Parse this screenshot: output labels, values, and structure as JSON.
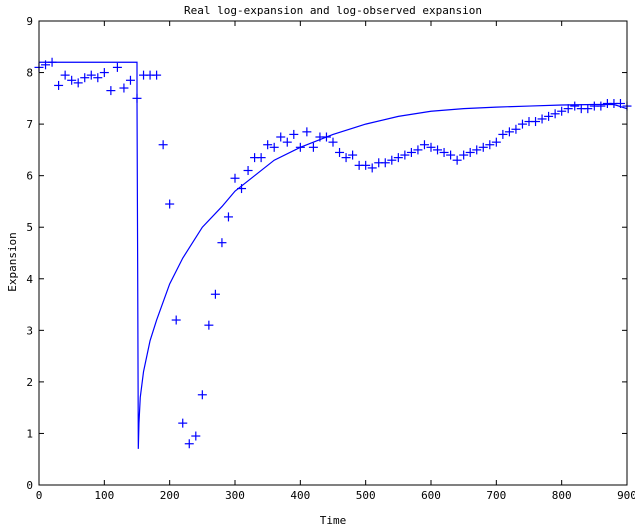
{
  "chart_data": {
    "type": "line",
    "title": "Real log-expansion and log-observed expansion",
    "xlabel": "Time",
    "ylabel": "Expansion",
    "xlim": [
      0,
      900
    ],
    "ylim": [
      0,
      9
    ],
    "xticks": [
      0,
      100,
      200,
      300,
      400,
      500,
      600,
      700,
      800,
      900
    ],
    "yticks": [
      0,
      1,
      2,
      3,
      4,
      5,
      6,
      7,
      8,
      9
    ],
    "grid": false,
    "color": "#0000ff",
    "series": [
      {
        "style": "line",
        "x": [
          0,
          150,
          150,
          151,
          152,
          153,
          155,
          160,
          170,
          180,
          200,
          220,
          250,
          280,
          300,
          330,
          360,
          400,
          450,
          500,
          550,
          600,
          650,
          700,
          750,
          800,
          850,
          880,
          900
        ],
        "y": [
          8.2,
          8.2,
          7.5,
          4.3,
          0.7,
          1.2,
          1.7,
          2.2,
          2.8,
          3.2,
          3.9,
          4.4,
          5.0,
          5.4,
          5.7,
          6.0,
          6.3,
          6.55,
          6.8,
          7.0,
          7.15,
          7.25,
          7.3,
          7.33,
          7.35,
          7.37,
          7.38,
          7.38,
          7.3
        ]
      },
      {
        "style": "marker",
        "marker": "+",
        "x": [
          0,
          10,
          20,
          30,
          40,
          50,
          60,
          70,
          80,
          90,
          100,
          110,
          120,
          130,
          140,
          150,
          160,
          170,
          180,
          190,
          200,
          210,
          220,
          230,
          240,
          250,
          260,
          270,
          280,
          290,
          300,
          310,
          320,
          330,
          340,
          350,
          360,
          370,
          380,
          390,
          400,
          410,
          420,
          430,
          440,
          450,
          460,
          470,
          480,
          490,
          500,
          510,
          520,
          530,
          540,
          550,
          560,
          570,
          580,
          590,
          600,
          610,
          620,
          630,
          640,
          650,
          660,
          670,
          680,
          690,
          700,
          710,
          720,
          730,
          740,
          750,
          760,
          770,
          780,
          790,
          800,
          810,
          820,
          830,
          840,
          850,
          860,
          870,
          880,
          890,
          900
        ],
        "y": [
          8.1,
          8.15,
          8.2,
          7.75,
          7.95,
          7.85,
          7.8,
          7.9,
          7.95,
          7.9,
          8.0,
          7.65,
          8.1,
          7.7,
          7.85,
          7.5,
          7.95,
          7.95,
          7.95,
          6.6,
          5.45,
          3.2,
          1.2,
          0.8,
          0.95,
          1.75,
          3.1,
          3.7,
          4.7,
          5.2,
          5.95,
          5.75,
          6.1,
          6.35,
          6.35,
          6.6,
          6.55,
          6.75,
          6.65,
          6.8,
          6.55,
          6.85,
          6.55,
          6.75,
          6.75,
          6.65,
          6.45,
          6.35,
          6.4,
          6.2,
          6.2,
          6.15,
          6.25,
          6.25,
          6.3,
          6.35,
          6.4,
          6.45,
          6.5,
          6.6,
          6.55,
          6.5,
          6.45,
          6.4,
          6.3,
          6.4,
          6.45,
          6.5,
          6.55,
          6.6,
          6.65,
          6.8,
          6.85,
          6.9,
          7.0,
          7.05,
          7.05,
          7.1,
          7.15,
          7.2,
          7.25,
          7.3,
          7.35,
          7.3,
          7.3,
          7.35,
          7.35,
          7.4,
          7.4,
          7.4,
          7.35
        ]
      }
    ]
  }
}
